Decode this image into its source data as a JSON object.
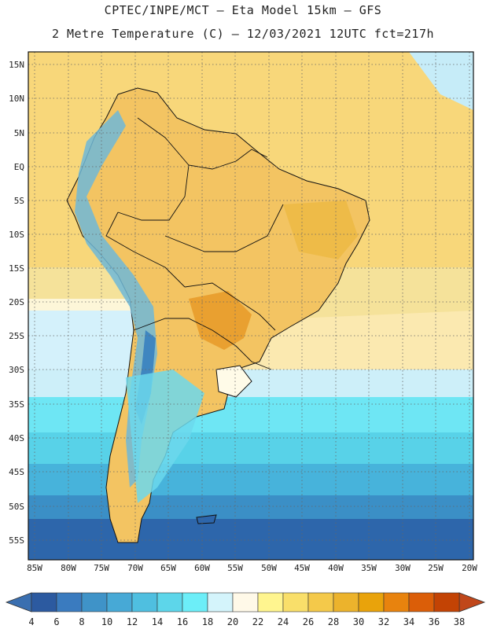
{
  "header": {
    "line1": "CPTEC/INPE/MCT –  Eta Model 15km – GFS",
    "line2": "2 Metre Temperature (C) – 12/03/2021 12UTC fct=217h"
  },
  "map": {
    "lat_labels": [
      "15N",
      "10N",
      "5N",
      "EQ",
      "5S",
      "10S",
      "15S",
      "20S",
      "25S",
      "30S",
      "35S",
      "40S",
      "45S",
      "50S",
      "55S"
    ],
    "lon_labels": [
      "85W",
      "80W",
      "75W",
      "70W",
      "65W",
      "60W",
      "55W",
      "50W",
      "45W",
      "40W",
      "35W",
      "30W",
      "25W",
      "20W"
    ],
    "region": "South America"
  },
  "colorbar": {
    "ticks": [
      "4",
      "6",
      "8",
      "10",
      "12",
      "14",
      "16",
      "18",
      "20",
      "22",
      "24",
      "26",
      "28",
      "30",
      "32",
      "34",
      "36",
      "38"
    ],
    "low_arrow_color": "#3a6fb0",
    "high_arrow_color": "#c0471a",
    "colors": [
      "#2c5aa0",
      "#3a7bbf",
      "#3f93c8",
      "#47a9d6",
      "#4fbfe0",
      "#5dd6ea",
      "#6ceef8",
      "#d4f4fb",
      "#fff9e8",
      "#fff58f",
      "#f9df6a",
      "#f4c94a",
      "#ecb32c",
      "#e9a30b",
      "#e8830e",
      "#db5e08",
      "#c34304"
    ]
  }
}
